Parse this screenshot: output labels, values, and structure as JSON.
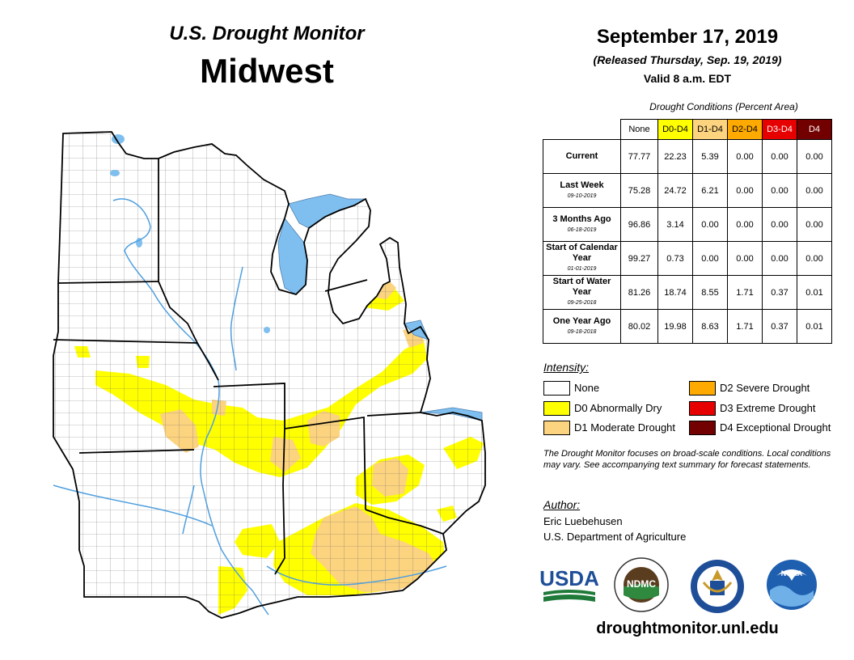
{
  "header": {
    "subtitle": "U.S. Drought Monitor",
    "region": "Midwest",
    "date": "September 17, 2019",
    "released": "(Released Thursday, Sep. 19, 2019)",
    "valid": "Valid 8 a.m. EDT"
  },
  "conditions": {
    "caption": "Drought Conditions (Percent Area)",
    "columns": [
      "None",
      "D0-D4",
      "D1-D4",
      "D2-D4",
      "D3-D4",
      "D4"
    ],
    "column_colors": [
      "#ffffff",
      "#ffff00",
      "#fcd37f",
      "#ffaa00",
      "#e60000",
      "#730000"
    ],
    "rows": [
      {
        "label": "Current",
        "date": "",
        "values": [
          "77.77",
          "22.23",
          "5.39",
          "0.00",
          "0.00",
          "0.00"
        ]
      },
      {
        "label": "Last Week",
        "date": "09-10-2019",
        "values": [
          "75.28",
          "24.72",
          "6.21",
          "0.00",
          "0.00",
          "0.00"
        ]
      },
      {
        "label": "3 Months Ago",
        "date": "06-18-2019",
        "values": [
          "96.86",
          "3.14",
          "0.00",
          "0.00",
          "0.00",
          "0.00"
        ]
      },
      {
        "label": "Start of Calendar Year",
        "date": "01-01-2019",
        "values": [
          "99.27",
          "0.73",
          "0.00",
          "0.00",
          "0.00",
          "0.00"
        ]
      },
      {
        "label": "Start of Water Year",
        "date": "09-25-2018",
        "values": [
          "81.26",
          "18.74",
          "8.55",
          "1.71",
          "0.37",
          "0.01"
        ]
      },
      {
        "label": "One Year Ago",
        "date": "09-18-2018",
        "values": [
          "80.02",
          "19.98",
          "8.63",
          "1.71",
          "0.37",
          "0.01"
        ]
      }
    ]
  },
  "legend": {
    "title": "Intensity:",
    "items": [
      {
        "label": "None",
        "color": "#ffffff"
      },
      {
        "label": "D0 Abnormally Dry",
        "color": "#ffff00"
      },
      {
        "label": "D1 Moderate Drought",
        "color": "#fcd37f"
      },
      {
        "label": "D2 Severe Drought",
        "color": "#ffaa00"
      },
      {
        "label": "D3 Extreme Drought",
        "color": "#e60000"
      },
      {
        "label": "D4 Exceptional Drought",
        "color": "#730000"
      }
    ]
  },
  "note": "The Drought Monitor focuses on broad-scale conditions. Local conditions may vary. See accompanying text summary for forecast statements.",
  "author": {
    "heading": "Author:",
    "name": "Eric Luebehusen",
    "org": "U.S. Department of Agriculture"
  },
  "logos": {
    "usda": "USDA",
    "ndmc": "NDMC",
    "noaa": "NOAA"
  },
  "website": "droughtmonitor.unl.edu",
  "map_colors": {
    "water": "#7fbfef",
    "river": "#4f9fdf",
    "d0": "#ffff00",
    "d1": "#fcd37f",
    "land": "#ffffff",
    "county_line": "#555555",
    "state_line": "#000000"
  }
}
